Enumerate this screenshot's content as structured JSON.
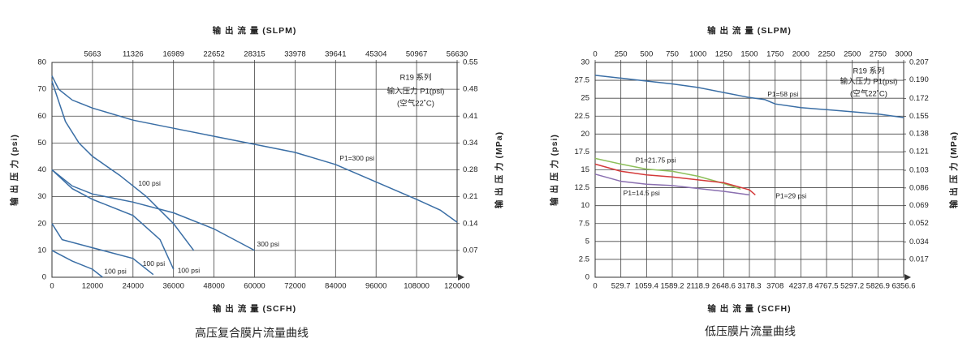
{
  "chart_data": [
    {
      "type": "line",
      "title": "高压复合膜片流量曲线",
      "xlabel": "输 出 流 量 (SCFH)",
      "x2label": "输 出 流 量 (SLPM)",
      "ylabel": "输 出 压 力 (psi)",
      "y2label": "输 出 压 力 (MPa)",
      "note": [
        "R19 系列",
        "输入压力 P1(psi)",
        "(空气22˚C)"
      ],
      "grid": true,
      "xlim": [
        0,
        120000
      ],
      "xticks": [
        0,
        12000,
        24000,
        36000,
        48000,
        60000,
        72000,
        84000,
        96000,
        108000,
        120000
      ],
      "x2lim": [
        0,
        56630
      ],
      "x2ticks": [
        5663,
        11326,
        16989,
        22652,
        28315,
        33978,
        39641,
        45304,
        50967,
        56630
      ],
      "ylim": [
        0,
        80
      ],
      "yticks": [
        0,
        10,
        20,
        30,
        40,
        50,
        60,
        70,
        80
      ],
      "y2lim": [
        0,
        0.5516
      ],
      "y2ticks": [
        {
          "value": 0.06895,
          "label": "0.07"
        },
        {
          "value": 0.1379,
          "label": "0.14"
        },
        {
          "value": 0.20684,
          "label": "0.21"
        },
        {
          "value": 0.27579,
          "label": "0.28"
        },
        {
          "value": 0.34474,
          "label": "0.34"
        },
        {
          "value": 0.41369,
          "label": "0.41"
        },
        {
          "value": 0.48263,
          "label": "0.48"
        },
        {
          "value": 0.55158,
          "label": "0.55"
        }
      ],
      "series": [
        {
          "name": "P1=300 psi",
          "color": "#3a6ea5",
          "x": [
            0,
            2000,
            6000,
            12000,
            24000,
            36000,
            48000,
            60000,
            72000,
            84000,
            96000,
            108000,
            115000,
            120000
          ],
          "values": [
            75,
            70,
            66,
            63,
            58.5,
            55.5,
            52.5,
            49.5,
            46.5,
            42,
            35.5,
            29,
            25,
            20.5
          ]
        },
        {
          "name": "100 psi",
          "color": "#3a6ea5",
          "x": [
            0,
            4000,
            8000,
            12000,
            20000,
            28000,
            36000,
            42000
          ],
          "values": [
            73,
            58,
            50,
            45,
            38,
            30,
            20,
            10
          ]
        },
        {
          "name": "300 psi",
          "color": "#3a6ea5",
          "x": [
            0,
            6000,
            12000,
            24000,
            36000,
            48000,
            60000
          ],
          "values": [
            40,
            34,
            31,
            28,
            24,
            18,
            10
          ]
        },
        {
          "name": "100 psi",
          "color": "#3a6ea5",
          "x": [
            0,
            6000,
            12000,
            24000,
            32000,
            36000
          ],
          "values": [
            40,
            33,
            29,
            23,
            14,
            3
          ]
        },
        {
          "name": "100 psi",
          "color": "#3a6ea5",
          "x": [
            0,
            3000,
            12000,
            24000,
            28000,
            30000
          ],
          "values": [
            20,
            14,
            11,
            7,
            3,
            1
          ]
        },
        {
          "name": "100 psi",
          "color": "#3a6ea5",
          "x": [
            0,
            6000,
            12000,
            15000
          ],
          "values": [
            10,
            6,
            3,
            0
          ]
        }
      ]
    },
    {
      "type": "line",
      "title": "低压膜片流量曲线",
      "xlabel": "输 出 流 量 (SCFH)",
      "x2label": "输 出 流 量 (SLPM)",
      "ylabel": "输 出 压 力 (psi)",
      "y2label": "输 出 压 力 (MPa)",
      "note": [
        "R19 系列",
        "输入压力 P1(psi)",
        "(空气22˚C)"
      ],
      "grid": true,
      "xlim": [
        0,
        6356.6
      ],
      "xticks": [
        0,
        529.7,
        1059.4,
        1589.2,
        2118.9,
        2648.6,
        3178.3,
        3708,
        4237.8,
        4767.5,
        5297.2,
        5826.9,
        6356.6
      ],
      "x2lim": [
        0,
        3000
      ],
      "x2ticks": [
        0,
        250,
        500,
        750,
        1000,
        1250,
        1500,
        1750,
        2000,
        2250,
        2500,
        2750,
        3000
      ],
      "ylim": [
        0,
        30
      ],
      "yticks": [
        0,
        2.5,
        5,
        7.5,
        10,
        12.5,
        15,
        17.5,
        20,
        22.5,
        25,
        27.5,
        30
      ],
      "y2lim": [
        0,
        0.20684
      ],
      "y2ticks": [
        0.017,
        0.034,
        0.052,
        0.069,
        0.086,
        0.103,
        0.121,
        0.138,
        0.155,
        0.172,
        {
          "value": 0.19,
          "label": "0.190"
        },
        0.207
      ],
      "series": [
        {
          "name": "P1=58 psi",
          "color": "#3a6ea5",
          "x": [
            0,
            529.7,
            1059.4,
            1589.2,
            2118.9,
            2648.6,
            3178.3,
            3500,
            3708,
            4237.8,
            4767.5,
            5297.2,
            5826.9,
            6356.6
          ],
          "values": [
            28.2,
            27.8,
            27.4,
            27,
            26.5,
            25.8,
            25.1,
            24.8,
            24.2,
            23.7,
            23.4,
            23.1,
            22.8,
            22.3
          ]
        },
        {
          "name": "P1=21.75 psi",
          "color": "#8dbf5a",
          "x": [
            0,
            529.7,
            1059.4,
            1589.2,
            2118.9,
            2648.6,
            3000
          ],
          "values": [
            16.6,
            15.8,
            15.1,
            14.8,
            14.1,
            13.1,
            12.3
          ]
        },
        {
          "name": "P1=29 psi",
          "color": "#d43a3a",
          "x": [
            0,
            529.7,
            1059.4,
            1589.2,
            2118.9,
            2648.6,
            3178.3,
            3300
          ],
          "values": [
            15.8,
            14.8,
            14.3,
            14,
            13.6,
            13.2,
            12.2,
            11.5
          ]
        },
        {
          "name": "P1=14.5 psi",
          "color": "#8a6fb0",
          "x": [
            0,
            529.7,
            1059.4,
            1589.2,
            2118.9,
            2648.6,
            3178.3
          ],
          "values": [
            14.4,
            13.4,
            13,
            12.8,
            12.4,
            12,
            11.5
          ]
        }
      ]
    }
  ]
}
